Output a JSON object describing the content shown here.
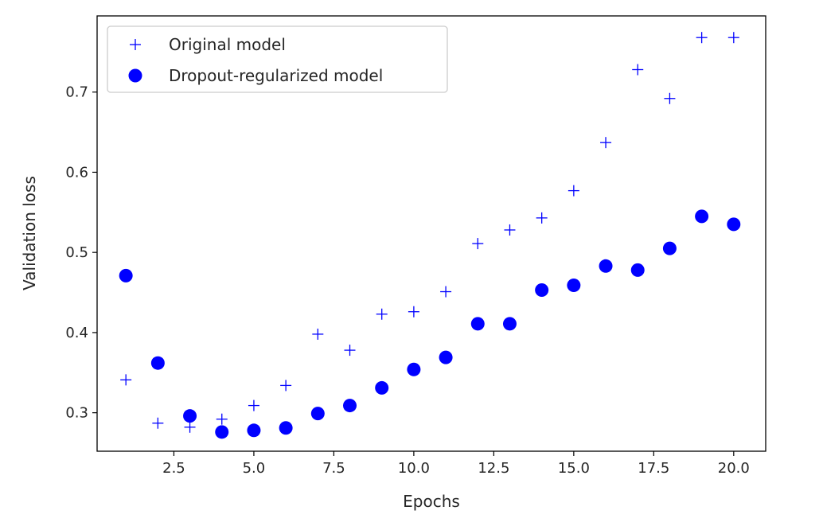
{
  "chart_data": {
    "type": "scatter",
    "title": "",
    "xlabel": "Epochs",
    "ylabel": "Validation loss",
    "xlim": [
      0.1,
      21.0
    ],
    "ylim": [
      0.252,
      0.795
    ],
    "xticks": [
      "2.5",
      "5.0",
      "7.5",
      "10.0",
      "12.5",
      "15.0",
      "17.5",
      "20.0"
    ],
    "xtick_values": [
      2.5,
      5.0,
      7.5,
      10.0,
      12.5,
      15.0,
      17.5,
      20.0
    ],
    "yticks": [
      "0.3",
      "0.4",
      "0.5",
      "0.6",
      "0.7"
    ],
    "ytick_values": [
      0.3,
      0.4,
      0.5,
      0.6,
      0.7
    ],
    "grid": false,
    "legend_position": "top-left",
    "x": [
      1,
      2,
      3,
      4,
      5,
      6,
      7,
      8,
      9,
      10,
      11,
      12,
      13,
      14,
      15,
      16,
      17,
      18,
      19,
      20
    ],
    "series": [
      {
        "name": "Original model",
        "marker": "plus",
        "color": "#0000ff",
        "values": [
          0.341,
          0.287,
          0.282,
          0.292,
          0.309,
          0.334,
          0.398,
          0.378,
          0.423,
          0.426,
          0.451,
          0.511,
          0.528,
          0.543,
          0.577,
          0.637,
          0.728,
          0.692,
          0.768,
          0.768
        ]
      },
      {
        "name": "Dropout-regularized model",
        "marker": "circle",
        "color": "#0000ff",
        "values": [
          0.471,
          0.362,
          0.296,
          0.276,
          0.278,
          0.281,
          0.299,
          0.309,
          0.331,
          0.354,
          0.369,
          0.411,
          0.411,
          0.453,
          0.459,
          0.483,
          0.478,
          0.505,
          0.545,
          0.535
        ]
      }
    ]
  }
}
